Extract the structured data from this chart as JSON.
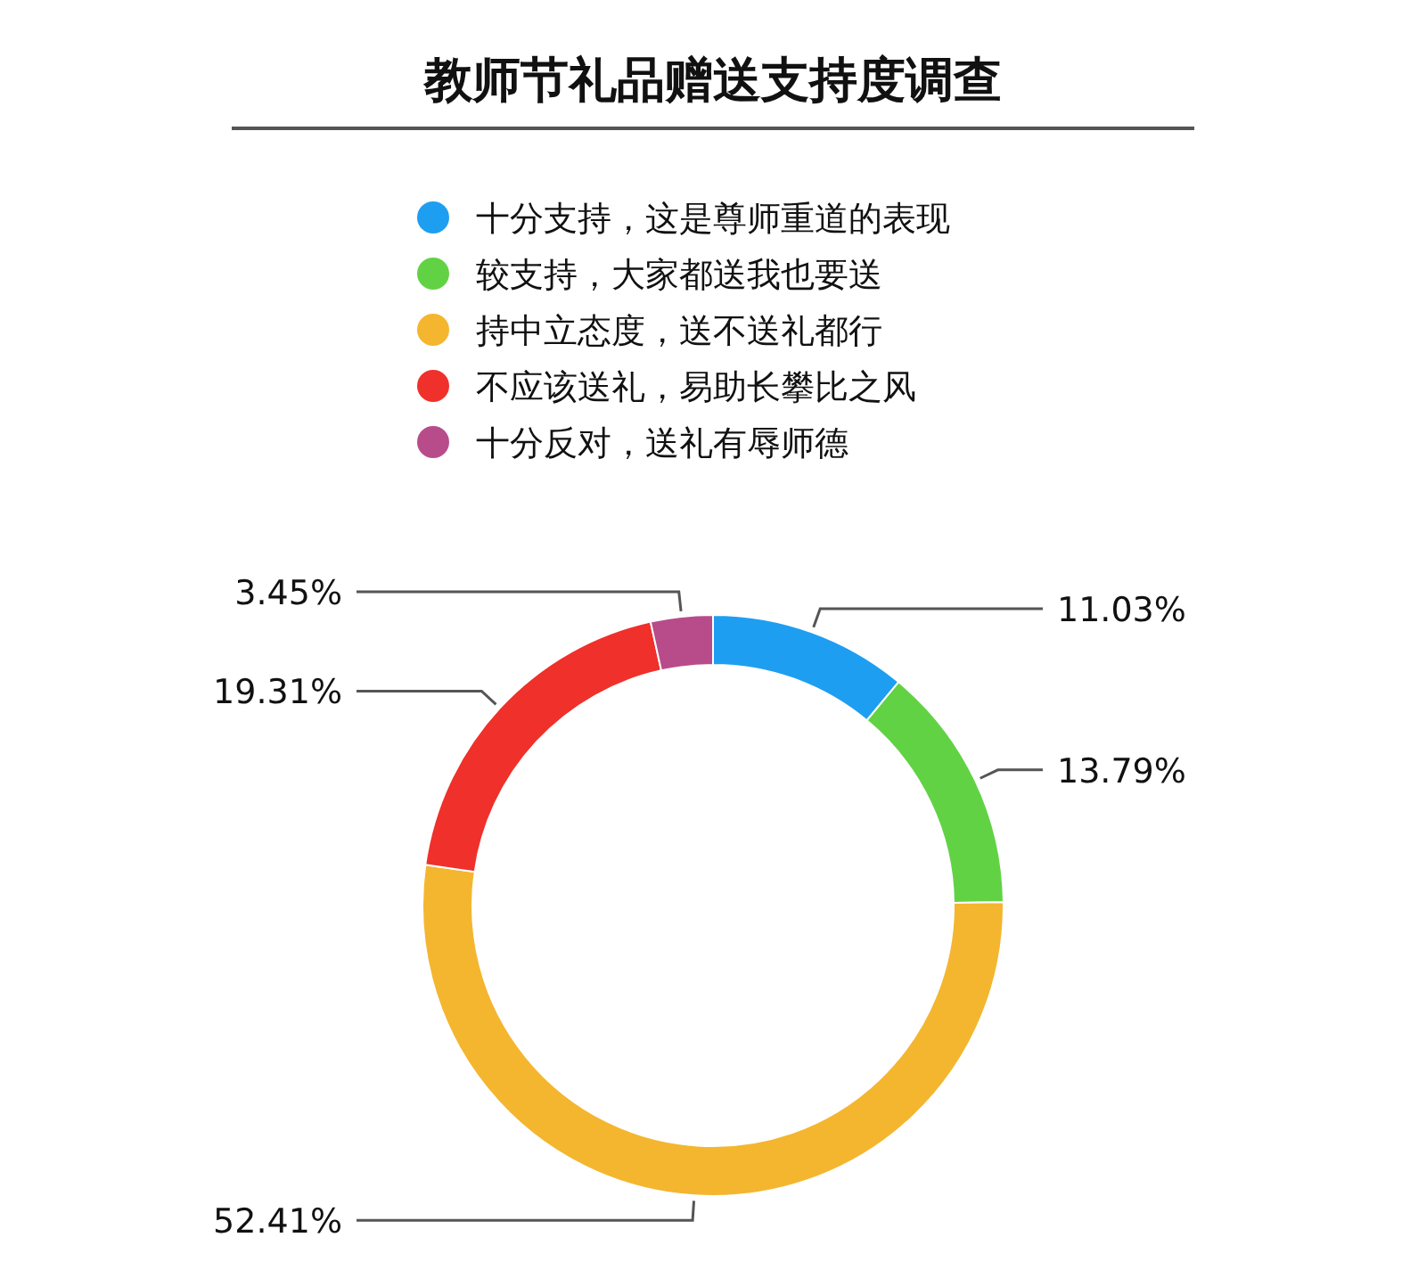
{
  "chart_data": {
    "type": "donut",
    "title": "教师节礼品赠送支持度调查",
    "categories": [
      "十分支持，这是尊师重道的表现",
      "较支持，大家都送我也要送",
      "持中立态度，送不送礼都行",
      "不应该送礼，易助长攀比之风",
      "十分反对，送礼有辱师德"
    ],
    "values": [
      11.03,
      13.79,
      52.41,
      19.31,
      3.45
    ],
    "colors": [
      "#1e9ef0",
      "#62d245",
      "#f4b62f",
      "#f0302a",
      "#b84c8a"
    ],
    "value_labels": [
      "11.03%",
      "13.79%",
      "52.41%",
      "19.31%",
      "3.45%"
    ],
    "legend": "top"
  }
}
